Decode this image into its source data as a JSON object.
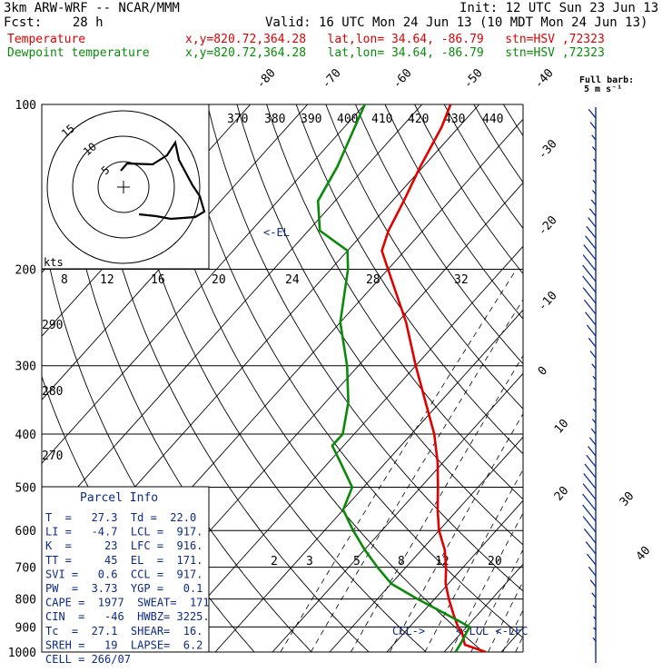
{
  "header": {
    "model": "3km ARW-WRF -- NCAR/MMM",
    "init": "Init: 12 UTC Sun 23 Jun 13",
    "fcst": "Fcst:    28 h",
    "valid": "Valid: 16 UTC Mon 24 Jun 13 (10 MDT Mon 24 Jun 13)",
    "temp_label": "Temperature",
    "temp_info": "x,y=820.72,364.28   lat,lon= 34.64, -86.79   stn=HSV ,72323",
    "dew_label": "Dewpoint temperature",
    "dew_info": "x,y=820.72,364.28   lat,lon= 34.64, -86.79   stn=HSV ,72323",
    "barb_note1": "Full barb:",
    "barb_note2": "5 m s⁻¹"
  },
  "chart_data": {
    "type": "line",
    "pressure_levels": [
      100,
      200,
      300,
      400,
      500,
      600,
      700,
      800,
      900,
      1000
    ],
    "isotherm_labels": [
      "-80",
      "-70",
      "-60",
      "-50",
      "-40",
      "-30",
      "-20",
      "-10",
      "0",
      "10",
      "20",
      "30",
      "40"
    ],
    "theta_labels": [
      "370",
      "380",
      "390",
      "400",
      "410",
      "420",
      "430",
      "440"
    ],
    "mixing_labels_top": [
      "8",
      "12",
      "16",
      "20",
      "24",
      "28",
      "32"
    ],
    "mixing_labels_bottom": [
      "2",
      "3",
      "5",
      "8",
      "12",
      "20"
    ],
    "theta_side_labels": [
      "290",
      "280",
      "270"
    ],
    "el_marker": "<-EL",
    "lcl_marker": "<-LCL <-LFC",
    "ccl_marker": "CCL->",
    "series": [
      {
        "name": "Temperature",
        "color": "#e00000",
        "pressure": [
          1000,
          970,
          920,
          900,
          850,
          800,
          750,
          700,
          650,
          600,
          550,
          500,
          450,
          400,
          350,
          300,
          250,
          200,
          185,
          170,
          150,
          130,
          110,
          100
        ],
        "temperature": [
          27.3,
          22.5,
          20.0,
          18.5,
          15.5,
          12.5,
          9.5,
          7.0,
          4.0,
          0.0,
          -3.5,
          -7.0,
          -11.0,
          -16.0,
          -22.5,
          -30.0,
          -38.5,
          -50.0,
          -54.0,
          -56.0,
          -58.0,
          -60.5,
          -63.0,
          -65.0
        ]
      },
      {
        "name": "Dewpoint temperature",
        "color": "#0a8a0a",
        "pressure": [
          1000,
          960,
          930,
          900,
          880,
          850,
          800,
          750,
          700,
          650,
          600,
          550,
          500,
          450,
          420,
          400,
          350,
          300,
          250,
          200,
          185,
          170,
          150,
          130,
          100
        ],
        "temperature": [
          22.0,
          21.5,
          21.0,
          20.5,
          18.0,
          14.0,
          7.0,
          0.0,
          -5.0,
          -10.0,
          -15.0,
          -20.0,
          -22.0,
          -28.0,
          -32.0,
          -32.0,
          -36.0,
          -42.0,
          -50.0,
          -57.0,
          -60.0,
          -68.0,
          -73.0,
          -75.0,
          -80.0
        ]
      }
    ],
    "hodograph": {
      "label": "kts",
      "rings": [
        "5",
        "10",
        "15"
      ]
    },
    "wind_barbs": true
  },
  "parcel_info": {
    "title": "Parcel Info",
    "rows": [
      "T  =   27.3  Td =  22.0",
      "LI =   -4.7  LCL =  917.",
      "K  =     23  LFC =  916.",
      "TT =     45  EL  =  171.",
      "SVI =   0.6  CCL =  917.",
      "PW  =  3.73  YGP =   0.1",
      "CAPE =  1977  SWEAT=  171",
      "CIN  =   -46  HWBZ= 3225.",
      "Tc  =  27.1  SHEAR=  16.",
      "SREH =   19  LAPSE=  6.2",
      "CELL = 266/07"
    ]
  }
}
